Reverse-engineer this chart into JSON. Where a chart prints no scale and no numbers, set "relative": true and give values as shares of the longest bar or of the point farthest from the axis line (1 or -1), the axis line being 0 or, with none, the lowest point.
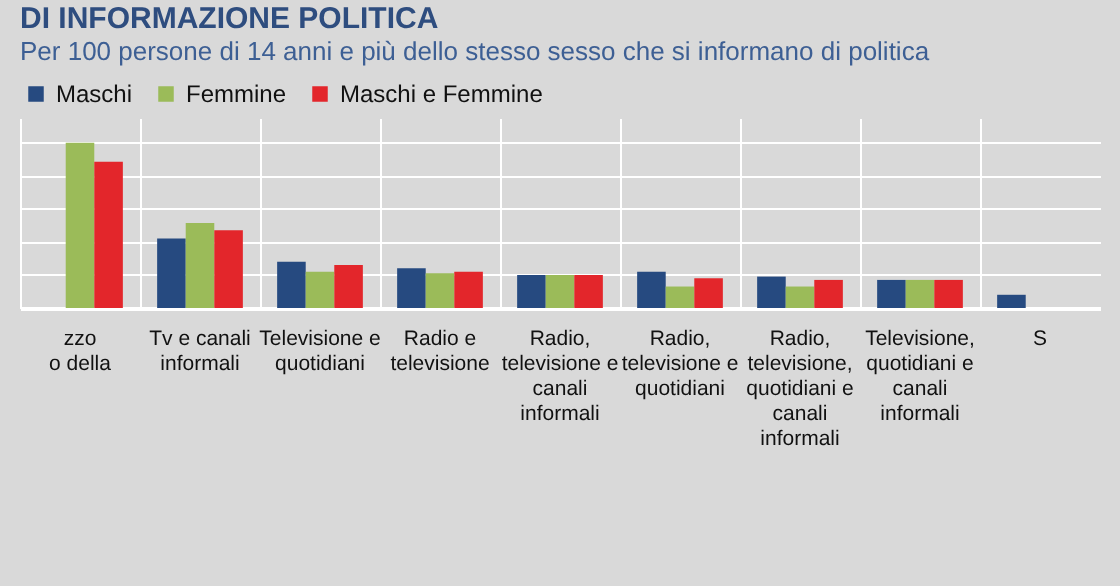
{
  "chart_data": {
    "type": "bar",
    "title": "DI INFORMAZIONE POLITICA",
    "subtitle": "Per 100 persone di 14 anni e più dello stesso sesso che si informano di politica",
    "categories": [
      "zzo\no della",
      "Tv e canali\ninformali",
      "Televisione e\nquotidiani",
      "Radio e\ntelevisione",
      "Radio,\ntelevisione e\ncanali\ninformali",
      "Radio,\ntelevisione e\nquotidiani",
      "Radio,\ntelevisione,\nquotidiani e\ncanali\ninformali",
      "Televisione,\nquotidiani e\ncanali\ninformali",
      "S"
    ],
    "relative": true,
    "series": [
      {
        "name": "Maschi",
        "color": "#264a80",
        "values": [
          null,
          0.42,
          0.28,
          0.24,
          0.2,
          0.22,
          0.19,
          0.17,
          0.08
        ]
      },
      {
        "name": "Femmine",
        "color": "#9bbb59",
        "values": [
          1,
          0.515,
          0.22,
          0.21,
          0.2,
          0.13,
          0.13,
          0.17,
          null
        ]
      },
      {
        "name": "Maschi e Femmine",
        "color": "#e3262b",
        "values": [
          0.885,
          0.47,
          0.26,
          0.22,
          0.2,
          0.18,
          0.17,
          0.17,
          null
        ]
      }
    ],
    "grid": true,
    "legend": "top"
  }
}
